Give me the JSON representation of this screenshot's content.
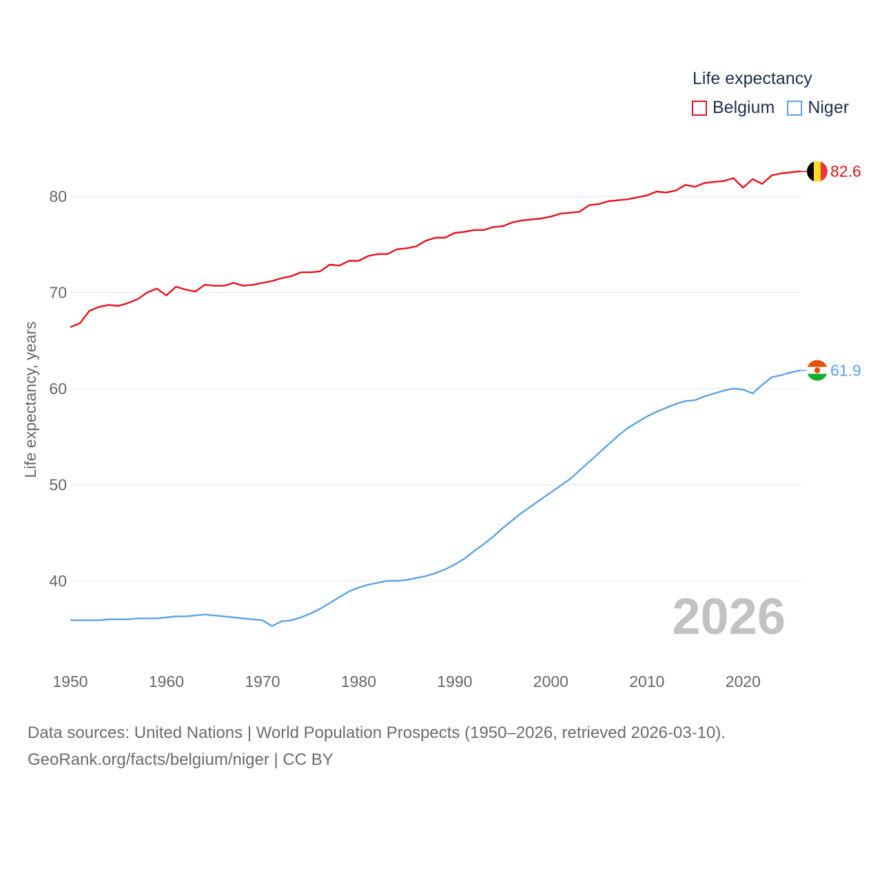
{
  "chart_data": {
    "type": "line",
    "ylabel": "Life expectancy, years",
    "xlabel": "",
    "xlim": [
      1950,
      2026
    ],
    "ylim": [
      31.5,
      86
    ],
    "yticks": [
      40,
      50,
      60,
      70,
      80
    ],
    "xticks": [
      1950,
      1960,
      1970,
      1980,
      1990,
      2000,
      2010,
      2020
    ],
    "year_label": "2026",
    "legend": {
      "title": "Life expectancy",
      "placement": "top-right"
    },
    "x": [
      1950,
      1951,
      1952,
      1953,
      1954,
      1955,
      1956,
      1957,
      1958,
      1959,
      1960,
      1961,
      1962,
      1963,
      1964,
      1965,
      1966,
      1967,
      1968,
      1969,
      1970,
      1971,
      1972,
      1973,
      1974,
      1975,
      1976,
      1977,
      1978,
      1979,
      1980,
      1981,
      1982,
      1983,
      1984,
      1985,
      1986,
      1987,
      1988,
      1989,
      1990,
      1991,
      1992,
      1993,
      1994,
      1995,
      1996,
      1997,
      1998,
      1999,
      2000,
      2001,
      2002,
      2003,
      2004,
      2005,
      2006,
      2007,
      2008,
      2009,
      2010,
      2011,
      2012,
      2013,
      2014,
      2015,
      2016,
      2017,
      2018,
      2019,
      2020,
      2021,
      2022,
      2023,
      2024,
      2025,
      2026
    ],
    "series": [
      {
        "name": "Belgium",
        "color": "#e8101a",
        "end_label": "82.6",
        "values": [
          66.4,
          66.8,
          68.1,
          68.5,
          68.7,
          68.6,
          68.9,
          69.3,
          70.0,
          70.4,
          69.7,
          70.6,
          70.3,
          70.1,
          70.8,
          70.7,
          70.7,
          71.0,
          70.7,
          70.8,
          71.0,
          71.2,
          71.5,
          71.7,
          72.1,
          72.1,
          72.2,
          72.9,
          72.8,
          73.3,
          73.3,
          73.8,
          74.0,
          74.0,
          74.5,
          74.6,
          74.8,
          75.4,
          75.7,
          75.7,
          76.2,
          76.3,
          76.5,
          76.5,
          76.8,
          76.9,
          77.3,
          77.5,
          77.6,
          77.7,
          77.9,
          78.2,
          78.3,
          78.4,
          79.1,
          79.2,
          79.5,
          79.6,
          79.7,
          79.9,
          80.1,
          80.5,
          80.4,
          80.6,
          81.2,
          81.0,
          81.4,
          81.5,
          81.6,
          81.9,
          80.9,
          81.8,
          81.3,
          82.2,
          82.4,
          82.5,
          82.6
        ]
      },
      {
        "name": "Niger",
        "color": "#5aa2e6",
        "end_label": "61.9",
        "values": [
          35.9,
          35.9,
          35.9,
          35.9,
          36.0,
          36.0,
          36.0,
          36.1,
          36.1,
          36.1,
          36.2,
          36.3,
          36.3,
          36.4,
          36.5,
          36.4,
          36.3,
          36.2,
          36.1,
          36.0,
          35.9,
          35.3,
          35.8,
          35.9,
          36.2,
          36.6,
          37.1,
          37.7,
          38.3,
          38.9,
          39.3,
          39.6,
          39.8,
          40.0,
          40.0,
          40.1,
          40.3,
          40.5,
          40.8,
          41.2,
          41.7,
          42.3,
          43.1,
          43.8,
          44.6,
          45.5,
          46.3,
          47.1,
          47.8,
          48.5,
          49.2,
          49.9,
          50.6,
          51.5,
          52.4,
          53.3,
          54.2,
          55.1,
          55.9,
          56.5,
          57.1,
          57.6,
          58.0,
          58.4,
          58.7,
          58.8,
          59.2,
          59.5,
          59.8,
          60.0,
          59.9,
          59.5,
          60.4,
          61.2,
          61.4,
          61.7,
          61.9
        ]
      }
    ]
  },
  "footer": {
    "line1": "Data sources: United Nations | World Population Prospects (1950–2026, retrieved 2026-03-10).",
    "line2": "GeoRank.org/facts/belgium/niger | CC BY"
  },
  "colors": {
    "grid": "#e6e6e6",
    "tick_text": "#666666",
    "year_label": "#c2c2c2",
    "belgium_flag": [
      "#000000",
      "#fdda24",
      "#ef3340"
    ],
    "niger_flag": [
      "#e05206",
      "#ffffff",
      "#0db02b",
      "#e05206"
    ]
  }
}
